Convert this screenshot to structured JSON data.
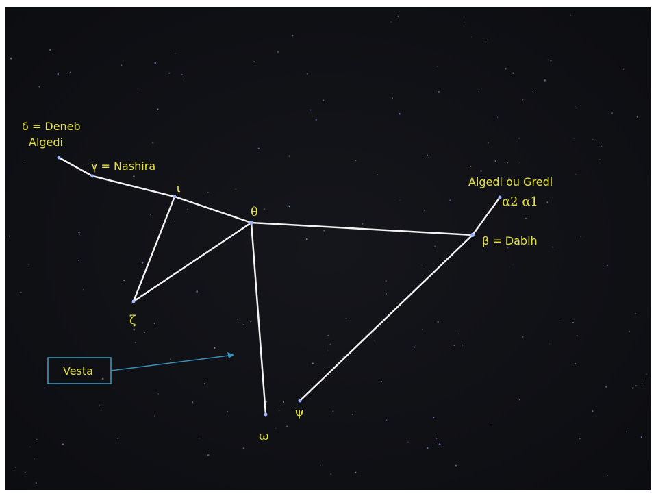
{
  "labels": {
    "delta_1": "δ = Deneb",
    "delta_2": "Algedi",
    "gamma": "γ = Nashira",
    "iota": "ι",
    "theta": "θ",
    "alpha_1": "Algedi ou Gredi",
    "alpha_2": "α2 α1",
    "beta": "β = Dabih",
    "zeta": "ζ",
    "vesta": "Vesta",
    "psi": "ψ",
    "omega": "ω"
  }
}
